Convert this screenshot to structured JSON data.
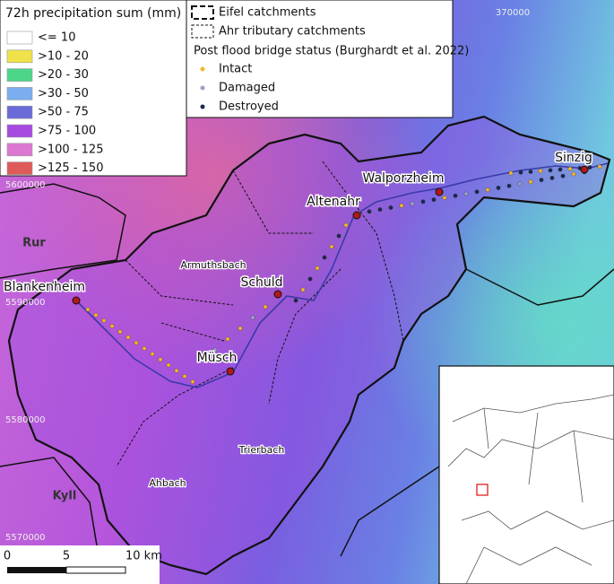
{
  "legend": {
    "title": "72h precipitation sum (mm)",
    "classes": [
      {
        "label": "<= 10",
        "color": "#ffffff"
      },
      {
        "label": ">10 - 20",
        "color": "#f0e24a"
      },
      {
        "label": ">20 - 30",
        "color": "#4cd68a"
      },
      {
        "label": ">30 - 50",
        "color": "#7aaef0"
      },
      {
        "label": ">50 - 75",
        "color": "#6a6ad8"
      },
      {
        "label": ">75 - 100",
        "color": "#a64ae0"
      },
      {
        "label": ">100 - 125",
        "color": "#dc78d0"
      },
      {
        "label": ">125 - 150",
        "color": "#e05a5a"
      }
    ]
  },
  "catchment_legend": {
    "items": [
      "Eifel catchments",
      "Ahr tributary catchments"
    ]
  },
  "bridge_legend": {
    "title": "Post flood bridge status (Burghardt et al. 2022)",
    "items": [
      {
        "label": "Intact",
        "color": "#f0b62c"
      },
      {
        "label": "Damaged",
        "color": "#9aa0c8"
      },
      {
        "label": "Destroyed",
        "color": "#1a2a4a"
      }
    ]
  },
  "grid_labels": {
    "x": [
      "370000"
    ],
    "y": [
      "5600000",
      "5590000",
      "5580000",
      "5570000"
    ]
  },
  "places": [
    "Rur",
    "Blankenheim",
    "Armuthsbach",
    "Schuld",
    "Altenahr",
    "Walporzheim",
    "Sinzig",
    "Müsch",
    "Trierbach",
    "Ahbach",
    "Kyll"
  ],
  "scale_bar": {
    "labels": [
      "0",
      "5",
      "10 km"
    ]
  }
}
